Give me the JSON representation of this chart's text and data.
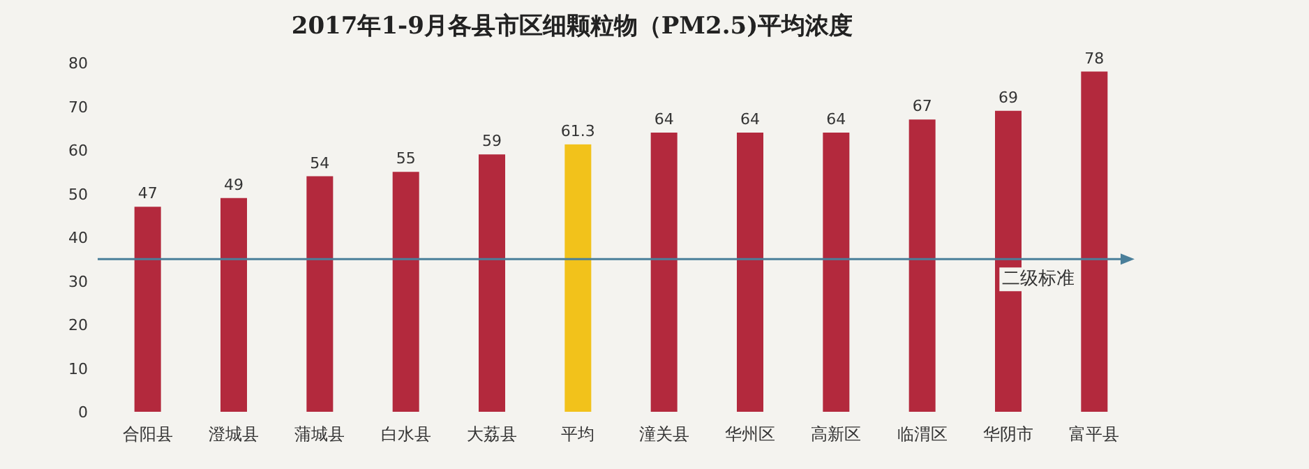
{
  "chart_data": {
    "type": "bar",
    "title": "2017年1-9月各县市区细颗粒物（PM2.5)平均浓度",
    "categories": [
      "合阳县",
      "澄城县",
      "蒲城县",
      "白水县",
      "大荔县",
      "平均",
      "潼关县",
      "华州区",
      "高新区",
      "临渭区",
      "华阴市",
      "富平县"
    ],
    "values": [
      47,
      49,
      54,
      55,
      59,
      61.3,
      64,
      64,
      64,
      67,
      69,
      78
    ],
    "colors": [
      "#b3293d",
      "#b3293d",
      "#b3293d",
      "#b3293d",
      "#b3293d",
      "#f2c21b",
      "#b3293d",
      "#b3293d",
      "#b3293d",
      "#b3293d",
      "#b3293d",
      "#b3293d"
    ],
    "ylim": [
      0,
      80
    ],
    "yticks": [
      0,
      10,
      20,
      30,
      40,
      50,
      60,
      70,
      80
    ],
    "data_labels": true,
    "ref_lines": [
      {
        "axis": "y",
        "value": 35,
        "label": "二级标准",
        "color": "#4a7f9a"
      }
    ]
  }
}
